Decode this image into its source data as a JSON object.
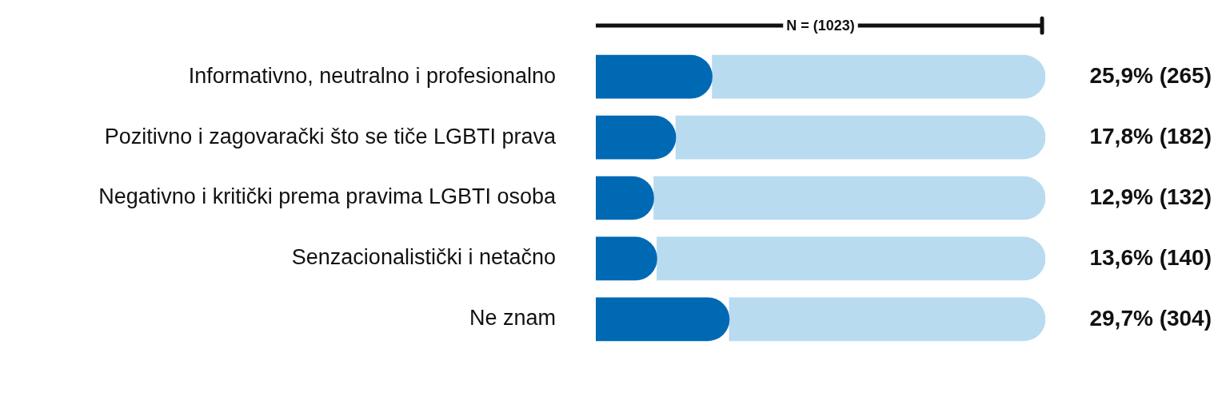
{
  "chart_data": {
    "type": "bar",
    "orientation": "horizontal",
    "categories": [
      "Informativno, neutralno i profesionalno",
      "Pozitivno i zagovarački što se tiče LGBTI prava",
      "Negativno i kritički prema pravima LGBTI osoba",
      "Senzacionalistički i netačno",
      "Ne znam"
    ],
    "series": [
      {
        "color": "#0069b4",
        "values": [
          25.9,
          17.8,
          12.9,
          13.6,
          29.7
        ],
        "value_labels": [
          "25,9% (265)",
          "17,8% (182)",
          "12,9% (132)",
          "13,6% (140)",
          "29,7% (304)"
        ]
      },
      {
        "color": "#b8dbf0",
        "values": [
          74.1,
          82.2,
          87.1,
          86.4,
          70.3
        ]
      }
    ],
    "stacked": true,
    "xlim": [
      0,
      100
    ],
    "annotations": [
      "N = (1023)"
    ],
    "legend": false
  }
}
